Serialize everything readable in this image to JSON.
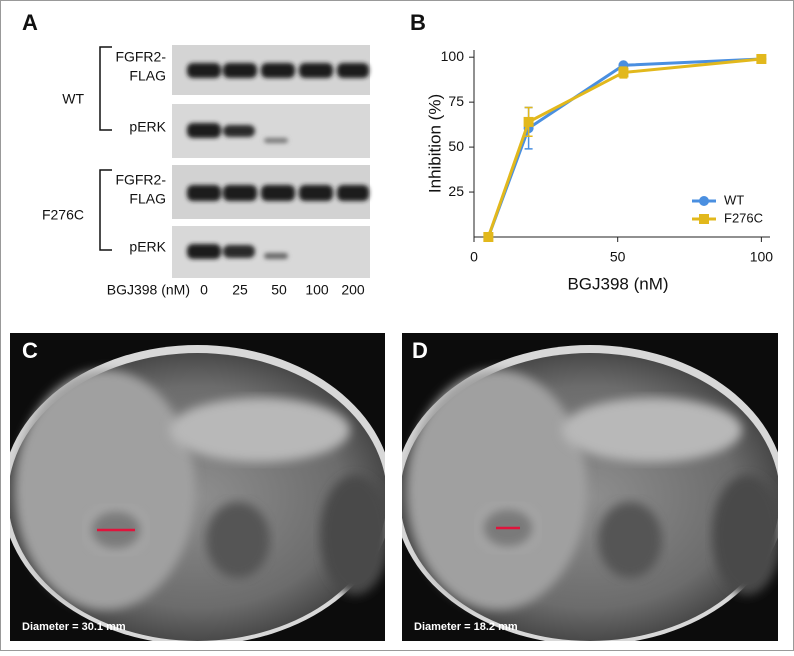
{
  "panel_labels": [
    "A",
    "B",
    "C",
    "D"
  ],
  "blot": {
    "groups": [
      {
        "name": "WT",
        "rows": [
          [
            "FGFR2-",
            "FLAG"
          ],
          [
            "pERK"
          ]
        ]
      },
      {
        "name": "F276C",
        "rows": [
          [
            "FGFR2-",
            "FLAG"
          ],
          [
            "pERK"
          ]
        ]
      }
    ],
    "dose_label": "BGJ398 (nM)",
    "doses": [
      0,
      25,
      50,
      100,
      200
    ]
  },
  "chart_data": {
    "type": "line",
    "y_label": "Inhibition (%)",
    "x_label": "BGJ398 (nM)",
    "x": [
      5,
      19,
      52,
      100
    ],
    "xlim": [
      0,
      103
    ],
    "xticks": [
      0,
      50,
      100
    ],
    "ylim": [
      0,
      104
    ],
    "yticks": [
      25,
      50,
      75,
      100
    ],
    "legend": "lower right",
    "series": [
      {
        "name": "WT",
        "color": "#4a8fe0",
        "marker": "circle",
        "values": [
          0,
          60.5,
          95.5,
          99
        ],
        "errors": [
          0,
          11.5,
          1,
          1.5
        ]
      },
      {
        "name": "F276C",
        "color": "#e2b81c",
        "marker": "square",
        "values": [
          0,
          64,
          91.5,
          99
        ],
        "errors": [
          0,
          8,
          3,
          1.5
        ]
      }
    ]
  },
  "mri": [
    {
      "caption": "Diameter = 30.1 mm"
    },
    {
      "caption": "Diameter = 18.2 mm"
    }
  ]
}
